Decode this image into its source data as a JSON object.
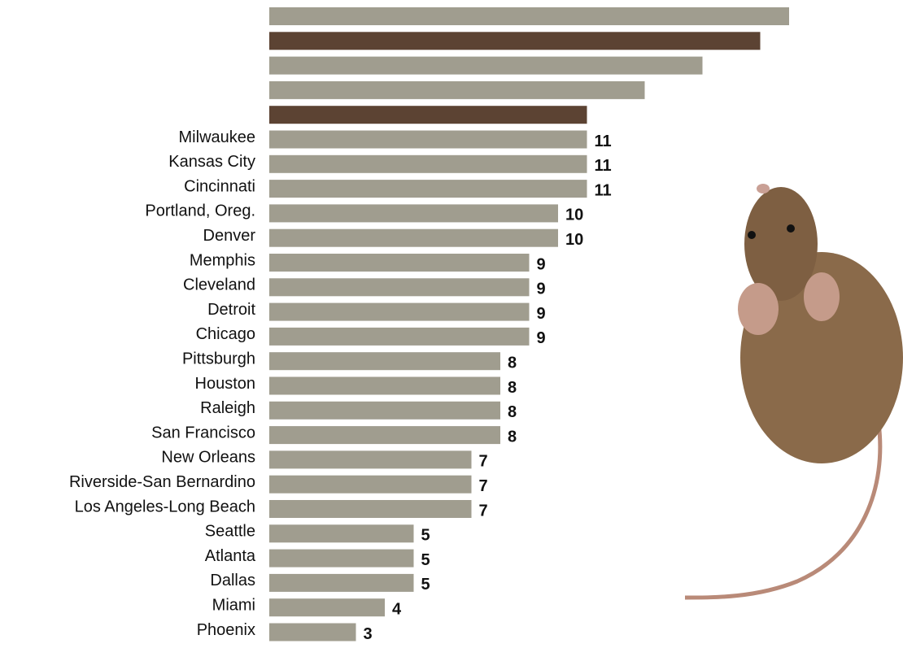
{
  "chart_data": {
    "type": "bar",
    "orientation": "horizontal",
    "categories": [
      null,
      null,
      null,
      null,
      null,
      "Milwaukee",
      "Kansas City",
      "Cincinnati",
      "Portland, Oreg.",
      "Denver",
      "Memphis",
      "Cleveland",
      "Detroit",
      "Chicago",
      "Pittsburgh",
      "Houston",
      "Raleigh",
      "San Francisco",
      "New Orleans",
      "Riverside-San Bernardino",
      "Los Angeles-Long Beach",
      "Seattle",
      "Atlanta",
      "Dallas",
      "Miami",
      "Phoenix"
    ],
    "values": [
      18,
      17,
      15,
      13,
      11,
      11,
      11,
      11,
      10,
      10,
      9,
      9,
      9,
      9,
      8,
      8,
      8,
      8,
      7,
      7,
      7,
      5,
      5,
      5,
      4,
      3
    ],
    "value_labels": [
      null,
      null,
      null,
      null,
      null,
      "11",
      "11",
      "11",
      "10",
      "10",
      "9",
      "9",
      "9",
      "9",
      "8",
      "8",
      "8",
      "8",
      "7",
      "7",
      "7",
      "5",
      "5",
      "5",
      "4",
      "3"
    ],
    "colors": [
      "#a09d8f",
      "#5c4333",
      "#a09d8f",
      "#a09d8f",
      "#5c4333",
      "#a09d8f",
      "#a09d8f",
      "#a09d8f",
      "#a09d8f",
      "#a09d8f",
      "#a09d8f",
      "#a09d8f",
      "#a09d8f",
      "#a09d8f",
      "#a09d8f",
      "#a09d8f",
      "#a09d8f",
      "#a09d8f",
      "#a09d8f",
      "#a09d8f",
      "#a09d8f",
      "#a09d8f",
      "#a09d8f",
      "#a09d8f",
      "#a09d8f",
      "#a09d8f"
    ],
    "xlim": [
      0,
      18
    ]
  }
}
